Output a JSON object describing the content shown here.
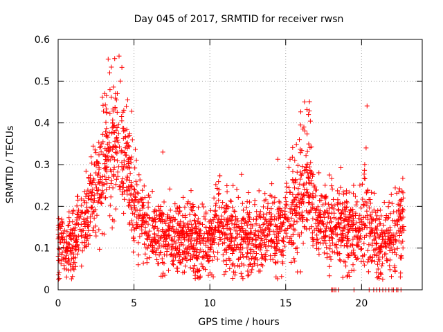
{
  "chart_data": {
    "type": "scatter",
    "title": "Day 045 of 2017, SRMTID for receiver rwsn",
    "xlabel": "GPS time / hours",
    "ylabel": "SRMTID / TECUs",
    "xlim": [
      0,
      24
    ],
    "ylim": [
      0,
      0.6
    ],
    "xticks": [
      0,
      5,
      10,
      15,
      20
    ],
    "yticks": [
      0,
      0.1,
      0.2,
      0.3,
      0.4,
      0.5,
      0.6
    ],
    "xtick_labels": [
      "0",
      "5",
      "10",
      "15",
      "20"
    ],
    "ytick_labels": [
      "0",
      "0.1",
      "0.2",
      "0.3",
      "0.4",
      "0.5",
      "0.6"
    ],
    "grid": true,
    "marker": "+",
    "marker_color": "#ff0000",
    "series": [
      {
        "name": "SRMTID",
        "profile": [
          [
            0.0,
            0.12,
            0.05
          ],
          [
            0.5,
            0.09,
            0.035
          ],
          [
            1.0,
            0.11,
            0.04
          ],
          [
            1.5,
            0.15,
            0.045
          ],
          [
            2.0,
            0.19,
            0.05
          ],
          [
            2.5,
            0.25,
            0.06
          ],
          [
            3.0,
            0.29,
            0.07
          ],
          [
            3.5,
            0.36,
            0.09
          ],
          [
            4.0,
            0.33,
            0.09
          ],
          [
            4.5,
            0.32,
            0.08
          ],
          [
            5.0,
            0.22,
            0.07
          ],
          [
            5.5,
            0.17,
            0.05
          ],
          [
            6.0,
            0.14,
            0.04
          ],
          [
            7.0,
            0.13,
            0.045
          ],
          [
            8.0,
            0.12,
            0.045
          ],
          [
            9.0,
            0.11,
            0.045
          ],
          [
            10.0,
            0.1,
            0.045
          ],
          [
            10.5,
            0.16,
            0.05
          ],
          [
            11.0,
            0.14,
            0.05
          ],
          [
            12.0,
            0.12,
            0.045
          ],
          [
            13.0,
            0.12,
            0.045
          ],
          [
            14.0,
            0.14,
            0.05
          ],
          [
            15.0,
            0.16,
            0.06
          ],
          [
            16.0,
            0.22,
            0.08
          ],
          [
            16.5,
            0.27,
            0.08
          ],
          [
            17.0,
            0.16,
            0.05
          ],
          [
            18.0,
            0.15,
            0.05
          ],
          [
            19.0,
            0.15,
            0.05
          ],
          [
            20.0,
            0.14,
            0.05
          ],
          [
            20.3,
            0.2,
            0.06
          ],
          [
            21.0,
            0.1,
            0.04
          ],
          [
            22.0,
            0.13,
            0.045
          ],
          [
            22.8,
            0.16,
            0.05
          ]
        ],
        "peaks": [
          [
            3.3,
            0.553
          ],
          [
            3.4,
            0.52
          ],
          [
            4.2,
            0.533
          ],
          [
            4.1,
            0.5
          ],
          [
            3.9,
            0.47
          ],
          [
            4.5,
            0.44
          ],
          [
            16.4,
            0.432
          ],
          [
            16.5,
            0.42
          ],
          [
            16.2,
            0.39
          ],
          [
            20.3,
            0.34
          ],
          [
            6.9,
            0.33
          ],
          [
            15.9,
            0.36
          ]
        ],
        "zero_points": [
          18.0,
          18.1,
          18.2,
          18.3,
          18.5,
          19.5,
          20.5,
          20.8,
          21.0,
          21.2,
          21.4,
          21.6,
          21.8,
          22.0,
          22.1,
          22.3,
          22.4,
          22.6
        ],
        "x_range": [
          0,
          22.8
        ],
        "n_points": 2400
      }
    ]
  }
}
